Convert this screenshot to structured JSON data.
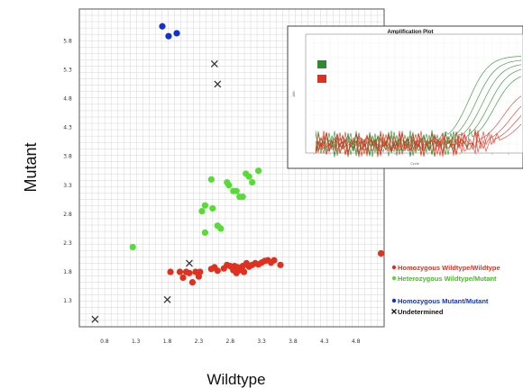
{
  "chart_data": [
    {
      "type": "scatter",
      "title": "",
      "xlabel": "Wildtype",
      "ylabel": "Mutant",
      "xlim": [
        0.0,
        4.85
      ],
      "ylim": [
        0.85,
        6.35
      ],
      "xticks": [
        {
          "value": 0.4,
          "label": "0.8"
        },
        {
          "value": 0.9,
          "label": "1.3"
        },
        {
          "value": 1.4,
          "label": "1.8"
        },
        {
          "value": 1.9,
          "label": "2.3"
        },
        {
          "value": 2.4,
          "label": "2.8"
        },
        {
          "value": 2.9,
          "label": "3.3"
        },
        {
          "value": 3.4,
          "label": "3.8"
        },
        {
          "value": 3.9,
          "label": "4.3"
        },
        {
          "value": 4.4,
          "label": "4.8"
        }
      ],
      "yticks": [
        {
          "value": 1.3,
          "label": "1.3"
        },
        {
          "value": 1.8,
          "label": "1.8"
        },
        {
          "value": 2.3,
          "label": "2.3"
        },
        {
          "value": 2.8,
          "label": "2.8"
        },
        {
          "value": 3.3,
          "label": "3.3"
        },
        {
          "value": 3.8,
          "label": "3.8"
        },
        {
          "value": 4.3,
          "label": "4.3"
        },
        {
          "value": 4.8,
          "label": "4.8"
        },
        {
          "value": 5.3,
          "label": "5.3"
        },
        {
          "value": 5.8,
          "label": "5.8"
        }
      ],
      "grid": true,
      "legend_position": "right",
      "series": [
        {
          "name": "Homozygous Wildtype/Wildtype",
          "color": "#e0301e",
          "marker": "circle",
          "points": [
            [
              1.45,
              1.8
            ],
            [
              1.6,
              1.8
            ],
            [
              1.65,
              1.7
            ],
            [
              1.7,
              1.8
            ],
            [
              1.75,
              1.78
            ],
            [
              1.8,
              1.62
            ],
            [
              1.85,
              1.8
            ],
            [
              1.9,
              1.72
            ],
            [
              1.92,
              1.8
            ],
            [
              2.1,
              1.85
            ],
            [
              2.15,
              1.88
            ],
            [
              2.2,
              1.82
            ],
            [
              2.3,
              1.86
            ],
            [
              2.35,
              1.92
            ],
            [
              2.4,
              1.9
            ],
            [
              2.45,
              1.83
            ],
            [
              2.47,
              1.9
            ],
            [
              2.5,
              1.78
            ],
            [
              2.52,
              1.88
            ],
            [
              2.55,
              1.83
            ],
            [
              2.6,
              1.9
            ],
            [
              2.62,
              1.8
            ],
            [
              2.66,
              1.95
            ],
            [
              2.7,
              1.89
            ],
            [
              2.75,
              1.92
            ],
            [
              2.8,
              1.95
            ],
            [
              2.85,
              1.93
            ],
            [
              2.9,
              1.96
            ],
            [
              2.95,
              1.99
            ],
            [
              3.0,
              2.0
            ],
            [
              3.05,
              1.96
            ],
            [
              3.1,
              2.0
            ],
            [
              3.2,
              1.92
            ],
            [
              4.8,
              2.12
            ]
          ]
        },
        {
          "name": "Heterozygous Wildtype/Mutant",
          "color": "#55dd33",
          "marker": "circle",
          "points": [
            [
              0.85,
              2.23
            ],
            [
              1.95,
              2.85
            ],
            [
              2.0,
              2.48
            ],
            [
              2.0,
              2.95
            ],
            [
              2.1,
              3.4
            ],
            [
              2.12,
              2.9
            ],
            [
              2.2,
              2.6
            ],
            [
              2.25,
              2.55
            ],
            [
              2.35,
              3.35
            ],
            [
              2.38,
              3.3
            ],
            [
              2.45,
              3.2
            ],
            [
              2.5,
              3.2
            ],
            [
              2.55,
              3.1
            ],
            [
              2.6,
              3.1
            ],
            [
              2.65,
              3.5
            ],
            [
              2.7,
              3.45
            ],
            [
              2.75,
              3.35
            ],
            [
              2.85,
              3.55
            ]
          ]
        },
        {
          "name": "Homozygous Mutant/Mutant",
          "color": "#1133cc",
          "marker": "circle",
          "points": [
            [
              1.32,
              6.05
            ],
            [
              1.42,
              5.88
            ],
            [
              1.55,
              5.93
            ]
          ]
        },
        {
          "name": "Undetermined",
          "color": "#333333",
          "marker": "x",
          "points": [
            [
              0.25,
              0.98
            ],
            [
              1.4,
              1.32
            ],
            [
              1.75,
              1.95
            ],
            [
              2.15,
              5.4
            ],
            [
              2.2,
              5.05
            ]
          ]
        }
      ]
    },
    {
      "type": "line",
      "title": "Amplification Plot",
      "xlabel": "Cycle",
      "ylabel": "ΔRn",
      "legend_swatches": [
        "#2e8b2e",
        "#e0301e"
      ]
    }
  ],
  "legend": {
    "items": [
      {
        "label": "Homozygous Wildtype/Wildtype",
        "color": "#e0301e",
        "marker": "circle"
      },
      {
        "label": "Heterozygous Wildtype/Mutant",
        "color": "#55dd33",
        "marker": "circle"
      },
      {
        "label": "Homozygous Mutant/Mutant",
        "color": "#1133cc",
        "marker": "circle"
      },
      {
        "label": "Undetermined",
        "color": "#111111",
        "marker": "x"
      }
    ]
  },
  "colors": {
    "plot_background": "#ffffff",
    "grid": "#d6d6d6",
    "frame": "#555555",
    "inset_green": "#2e8b2e",
    "inset_red": "#e0301e"
  }
}
